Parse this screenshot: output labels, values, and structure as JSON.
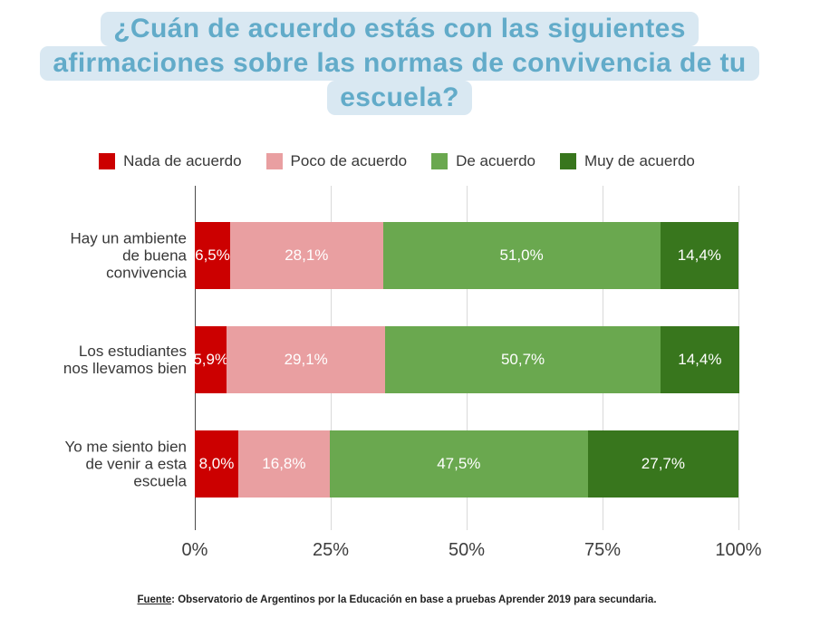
{
  "title": {
    "lines": [
      "¿Cuán de acuerdo estás con las siguientes",
      "afirmaciones sobre las normas de convivencia de tu",
      "escuela?"
    ],
    "text_color": "#62abc9",
    "highlight_color": "#d9e8f2"
  },
  "legend": [
    {
      "label": "Nada de acuerdo",
      "color": "#cc0000"
    },
    {
      "label": "Poco de acuerdo",
      "color": "#e99fa1"
    },
    {
      "label": "De acuerdo",
      "color": "#6aa84f"
    },
    {
      "label": "Muy de acuerdo",
      "color": "#38761d"
    }
  ],
  "chart_data": {
    "type": "bar",
    "subtype": "horizontal_stacked",
    "categories": [
      [
        "Hay un ambiente",
        "de buena",
        "convivencia"
      ],
      [
        "Los estudiantes",
        "nos llevamos bien"
      ],
      [
        "Yo me siento bien",
        "de venir a esta",
        "escuela"
      ]
    ],
    "series": [
      {
        "name": "Nada de acuerdo",
        "color": "#cc0000",
        "values": [
          6.5,
          5.9,
          8.0
        ],
        "labels": [
          "6,5%",
          "5,9%",
          "8,0%"
        ]
      },
      {
        "name": "Poco de acuerdo",
        "color": "#e99fa1",
        "values": [
          28.1,
          29.1,
          16.8
        ],
        "labels": [
          "28,1%",
          "29,1%",
          "16,8%"
        ]
      },
      {
        "name": "De acuerdo",
        "color": "#6aa84f",
        "values": [
          51.0,
          50.7,
          47.5
        ],
        "labels": [
          "51,0%",
          "50,7%",
          "47,5%"
        ]
      },
      {
        "name": "Muy de acuerdo",
        "color": "#38761d",
        "values": [
          14.4,
          14.4,
          27.7
        ],
        "labels": [
          "14,4%",
          "14,4%",
          "27,7%"
        ]
      }
    ],
    "x_ticks": [
      "0%",
      "25%",
      "50%",
      "75%",
      "100%"
    ],
    "xlim": [
      0,
      100
    ],
    "grid": true,
    "legend_position": "top"
  },
  "footer": {
    "source_label": "Fuente",
    "source_text": ": Observatorio de Argentinos por la Educación en base a pruebas Aprender 2019 para secundaria."
  }
}
